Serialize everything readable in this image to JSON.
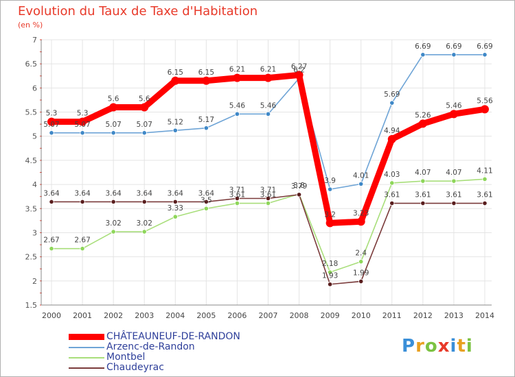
{
  "chart_data": {
    "type": "line",
    "title": "Evolution du Taux de Taxe d'Habitation",
    "subtitle": "(en %)",
    "xlabel": "",
    "ylabel": "",
    "x": [
      2000,
      2001,
      2002,
      2003,
      2004,
      2005,
      2006,
      2007,
      2008,
      2009,
      2010,
      2011,
      2012,
      2013,
      2014
    ],
    "xticks": [
      "2000",
      "2001",
      "2002",
      "2003",
      "2004",
      "2005",
      "2006",
      "2007",
      "2008",
      "2009",
      "2010",
      "2011",
      "2012",
      "2013",
      "2014"
    ],
    "ylim": [
      1.5,
      7
    ],
    "yticks": [
      "1.5",
      "2",
      "2.5",
      "3",
      "3.5",
      "4",
      "4.5",
      "5",
      "5.5",
      "6",
      "6.5",
      "7"
    ],
    "grid": true,
    "series": [
      {
        "name": "Arzenc-de-Randon",
        "color": "#6ea4d6",
        "marker": "#3f88c7",
        "values": [
          5.07,
          5.07,
          5.07,
          5.07,
          5.12,
          5.17,
          5.46,
          5.46,
          6.2,
          3.9,
          4.01,
          5.69,
          6.69,
          6.69,
          6.69
        ],
        "labels": [
          "5.07",
          "5.07",
          "5.07",
          "5.07",
          "5.12",
          "5.17",
          "5.46",
          "5.46",
          "6.2",
          "3.9",
          "4.01",
          "5.69",
          "6.69",
          "6.69",
          "6.69"
        ]
      },
      {
        "name": "Montbel",
        "color": "#a8de7a",
        "marker": "#8ed65a",
        "values": [
          2.67,
          2.67,
          3.02,
          3.02,
          3.33,
          3.5,
          3.61,
          3.61,
          3.8,
          2.18,
          2.4,
          4.03,
          4.07,
          4.07,
          4.11
        ],
        "labels": [
          "2.67",
          "2.67",
          "3.02",
          "3.02",
          "3.33",
          "3.5",
          "3.61",
          "3.61",
          "3.8",
          "2.18",
          "2.4",
          "4.03",
          "4.07",
          "4.07",
          "4.11"
        ]
      },
      {
        "name": "Chaudeyrac",
        "color": "#7a3a3a",
        "marker": "#5a1e1e",
        "values": [
          3.64,
          3.64,
          3.64,
          3.64,
          3.64,
          3.64,
          3.71,
          3.71,
          3.79,
          1.93,
          1.99,
          3.61,
          3.61,
          3.61,
          3.61
        ],
        "labels": [
          "3.64",
          "3.64",
          "3.64",
          "3.64",
          "3.64",
          "3.64",
          "3.71",
          "3.71",
          "3.79",
          "1.93",
          "1.99",
          "3.61",
          "3.61",
          "3.61",
          "3.61"
        ]
      },
      {
        "name": "CHÂTEAUNEUF-DE-RANDON",
        "color": "#ff0000",
        "marker": "#ff0000",
        "values": [
          5.3,
          5.3,
          5.6,
          5.6,
          6.15,
          6.15,
          6.21,
          6.21,
          6.27,
          3.2,
          3.23,
          4.94,
          5.26,
          5.46,
          5.56
        ],
        "labels": [
          "5.3",
          "5.3",
          "5.6",
          "5.6",
          "6.15",
          "6.15",
          "6.21",
          "6.21",
          "6.27",
          "3.2",
          "3.23",
          "4.94",
          "5.26",
          "5.46",
          "5.56"
        ]
      }
    ]
  },
  "legend": [
    {
      "name": "CHÂTEAUNEUF-DE-RANDON",
      "color": "#ff0000"
    },
    {
      "name": "Arzenc-de-Randon",
      "color": "#6ea4d6"
    },
    {
      "name": "Montbel",
      "color": "#a8de7a"
    },
    {
      "name": "Chaudeyrac",
      "color": "#7a3a3a"
    }
  ],
  "brand": {
    "letters": [
      "P",
      "r",
      "o",
      "x",
      "i",
      "t",
      "i"
    ],
    "colors": [
      "#3a8fd8",
      "#e8a020",
      "#7cc242",
      "#e83a2a",
      "#3a8fd8",
      "#e8a020",
      "#7cc242"
    ]
  }
}
